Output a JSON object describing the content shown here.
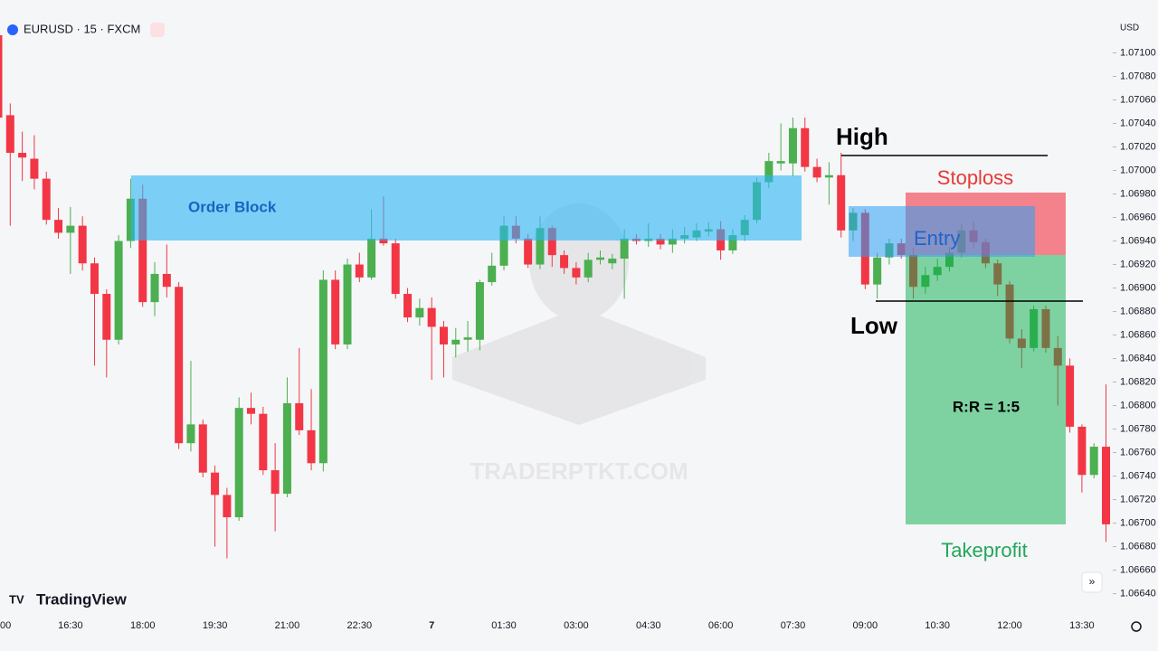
{
  "chart_data": {
    "type": "candlestick",
    "title": "EURUSD · 15 · FXCM",
    "currency": "USD",
    "brand": "TradingView",
    "watermark": "TRADERPTKT.COM",
    "up_color": "#4caf50",
    "down_color": "#f23645",
    "categories": [
      "00",
      null,
      null,
      null,
      null,
      null,
      "16:30",
      null,
      null,
      null,
      null,
      null,
      "18:00",
      null,
      null,
      null,
      null,
      null,
      "19:30",
      null,
      null,
      null,
      null,
      null,
      "21:00",
      null,
      null,
      null,
      null,
      null,
      "22:30",
      null,
      null,
      null,
      null,
      null,
      "7",
      null,
      null,
      null,
      null,
      null,
      "01:30",
      null,
      null,
      null,
      null,
      null,
      "03:00",
      null,
      null,
      null,
      null,
      null,
      "04:30",
      null,
      null,
      null,
      null,
      null,
      "06:00",
      null,
      null,
      null,
      null,
      null,
      "07:30",
      null,
      null,
      null,
      null,
      null,
      "09:00",
      null,
      null,
      null,
      null,
      null,
      "10:30",
      null,
      null,
      null,
      null,
      null,
      "12:00",
      null,
      null,
      null,
      null,
      null,
      "13:30",
      null,
      null
    ],
    "open": [
      1.07115,
      1.07047,
      1.07015,
      1.0701,
      1.06993,
      1.06958,
      1.06947,
      1.06953,
      1.06921,
      1.06895,
      1.06856,
      1.0694,
      1.06976,
      1.06888,
      1.06912,
      1.06901,
      1.06768,
      1.06784,
      1.06743,
      1.06724,
      1.06705,
      1.06798,
      1.06793,
      1.06745,
      1.06725,
      1.06802,
      1.06779,
      1.06751,
      1.06907,
      1.06852,
      1.0692,
      1.06909,
      1.06942,
      1.06938,
      1.06895,
      1.06875,
      1.06883,
      1.06867,
      1.06852,
      1.06856,
      1.06856,
      1.06905,
      1.06919,
      1.06953,
      1.06942,
      1.0692,
      1.06951,
      1.06928,
      1.06917,
      1.06909,
      1.06924,
      1.06921,
      1.06925,
      1.06942,
      1.0694,
      1.06942,
      1.06937,
      1.06942,
      1.06943,
      1.06948,
      1.0695,
      1.06932,
      1.06945,
      1.06958,
      1.0699,
      1.07006,
      1.07006,
      1.07036,
      1.07003,
      1.06994,
      1.06996,
      1.06949,
      1.06964,
      1.06903,
      1.06926,
      1.06938,
      1.06928,
      1.06901,
      1.06911,
      1.06918,
      1.0693,
      1.06949,
      1.06939,
      1.06921,
      1.06903,
      1.06857,
      1.06849,
      1.06882,
      1.06849,
      1.06834,
      1.06782,
      1.06741,
      1.06765
    ],
    "high": [
      1.07122,
      1.07057,
      1.07033,
      1.0703,
      1.06999,
      1.06968,
      1.06969,
      1.06961,
      1.06926,
      1.06899,
      1.06945,
      1.06993,
      1.06988,
      1.06922,
      1.06937,
      1.06905,
      1.06838,
      1.06788,
      1.06749,
      1.0673,
      1.06807,
      1.06811,
      1.06799,
      1.06768,
      1.06824,
      1.06849,
      1.06814,
      1.06915,
      1.06915,
      1.06925,
      1.0693,
      1.06967,
      1.06978,
      1.06942,
      1.069,
      1.06891,
      1.06892,
      1.06872,
      1.06866,
      1.06872,
      1.06907,
      1.0693,
      1.06961,
      1.06961,
      1.06946,
      1.06961,
      1.06953,
      1.06932,
      1.06922,
      1.0693,
      1.06932,
      1.06929,
      1.0695,
      1.06946,
      1.06955,
      1.06946,
      1.0695,
      1.06952,
      1.06955,
      1.06956,
      1.06957,
      1.0695,
      1.06962,
      1.06994,
      1.07015,
      1.0704,
      1.07045,
      1.07045,
      1.0701,
      1.07007,
      1.07015,
      1.06968,
      1.06967,
      1.0693,
      1.06942,
      1.06942,
      1.06934,
      1.06918,
      1.06925,
      1.06935,
      1.06955,
      1.06957,
      1.06942,
      1.06924,
      1.06906,
      1.06865,
      1.06885,
      1.06885,
      1.06859,
      1.0684,
      1.06784,
      1.06768,
      1.06818
    ],
    "low": [
      1.07042,
      1.06953,
      1.06991,
      1.06984,
      1.06954,
      1.06942,
      1.06912,
      1.06915,
      1.06834,
      1.06824,
      1.06852,
      1.06934,
      1.06884,
      1.06876,
      1.06892,
      1.06763,
      1.06761,
      1.06739,
      1.0668,
      1.0667,
      1.06702,
      1.06784,
      1.06741,
      1.06693,
      1.06722,
      1.06775,
      1.06745,
      1.06744,
      1.06848,
      1.06848,
      1.06905,
      1.06907,
      1.06936,
      1.06891,
      1.06871,
      1.06868,
      1.06822,
      1.06824,
      1.06841,
      1.06846,
      1.06847,
      1.06902,
      1.06915,
      1.06938,
      1.06917,
      1.06916,
      1.06918,
      1.06912,
      1.06903,
      1.06905,
      1.0692,
      1.06916,
      1.06891,
      1.06937,
      1.06935,
      1.06933,
      1.0693,
      1.06938,
      1.0694,
      1.06944,
      1.06924,
      1.06929,
      1.0694,
      1.06955,
      1.06985,
      1.07,
      1.06995,
      1.06999,
      1.0699,
      1.06971,
      1.06943,
      1.0694,
      1.06899,
      1.06891,
      1.0692,
      1.06925,
      1.06891,
      1.06895,
      1.06906,
      1.06914,
      1.06926,
      1.06934,
      1.06917,
      1.06893,
      1.06853,
      1.06832,
      1.06846,
      1.06845,
      1.068,
      1.06777,
      1.06726,
      1.06738,
      1.06684
    ],
    "close": [
      1.07045,
      1.07015,
      1.07011,
      1.06993,
      1.06958,
      1.06947,
      1.06953,
      1.06921,
      1.06895,
      1.06856,
      1.0694,
      1.06976,
      1.06888,
      1.06912,
      1.06901,
      1.06768,
      1.06784,
      1.06743,
      1.06724,
      1.06705,
      1.06798,
      1.06793,
      1.06745,
      1.06725,
      1.06802,
      1.06779,
      1.06751,
      1.06907,
      1.06852,
      1.0692,
      1.06909,
      1.06942,
      1.06938,
      1.06895,
      1.06875,
      1.06883,
      1.06867,
      1.06852,
      1.06856,
      1.06858,
      1.06905,
      1.06919,
      1.06953,
      1.06942,
      1.0692,
      1.06951,
      1.06928,
      1.06917,
      1.06909,
      1.06924,
      1.06926,
      1.06925,
      1.06942,
      1.0694,
      1.06942,
      1.06937,
      1.06942,
      1.06945,
      1.06949,
      1.0695,
      1.06932,
      1.06945,
      1.06958,
      1.0699,
      1.07008,
      1.07008,
      1.07036,
      1.07003,
      1.06994,
      1.06996,
      1.06949,
      1.06964,
      1.06903,
      1.06926,
      1.06938,
      1.06928,
      1.06901,
      1.06911,
      1.06918,
      1.0693,
      1.06949,
      1.06939,
      1.06921,
      1.06903,
      1.06857,
      1.06849,
      1.06882,
      1.06849,
      1.06834,
      1.06782,
      1.06741,
      1.06765,
      1.06699
    ],
    "ylim": [
      1.06622,
      1.07145
    ],
    "yticks": [
      {
        "value": 1.071,
        "label": "1.07100"
      },
      {
        "value": 1.0708,
        "label": "1.07080"
      },
      {
        "value": 1.0706,
        "label": "1.07060"
      },
      {
        "value": 1.0704,
        "label": "1.07040"
      },
      {
        "value": 1.0702,
        "label": "1.07020"
      },
      {
        "value": 1.07,
        "label": "1.07000"
      },
      {
        "value": 1.0698,
        "label": "1.06980"
      },
      {
        "value": 1.0696,
        "label": "1.06960"
      },
      {
        "value": 1.0694,
        "label": "1.06940"
      },
      {
        "value": 1.0692,
        "label": "1.06920"
      },
      {
        "value": 1.069,
        "label": "1.06900"
      },
      {
        "value": 1.0688,
        "label": "1.06880"
      },
      {
        "value": 1.0686,
        "label": "1.06860"
      },
      {
        "value": 1.0684,
        "label": "1.06840"
      },
      {
        "value": 1.0682,
        "label": "1.06820"
      },
      {
        "value": 1.068,
        "label": "1.06800"
      },
      {
        "value": 1.0678,
        "label": "1.06780"
      },
      {
        "value": 1.0676,
        "label": "1.06760"
      },
      {
        "value": 1.0674,
        "label": "1.06740"
      },
      {
        "value": 1.0672,
        "label": "1.06720"
      },
      {
        "value": 1.067,
        "label": "1.06700"
      },
      {
        "value": 1.0668,
        "label": "1.06680"
      },
      {
        "value": 1.0666,
        "label": "1.06660"
      },
      {
        "value": 1.0664,
        "label": "1.06640"
      }
    ],
    "annotations": {
      "order_block": "Order Block",
      "high": "High",
      "low": "Low",
      "stoploss": "Stoploss",
      "entry": "Entry",
      "rr": "R:R = 1:5",
      "takeprofit": "Takeprofit"
    }
  }
}
